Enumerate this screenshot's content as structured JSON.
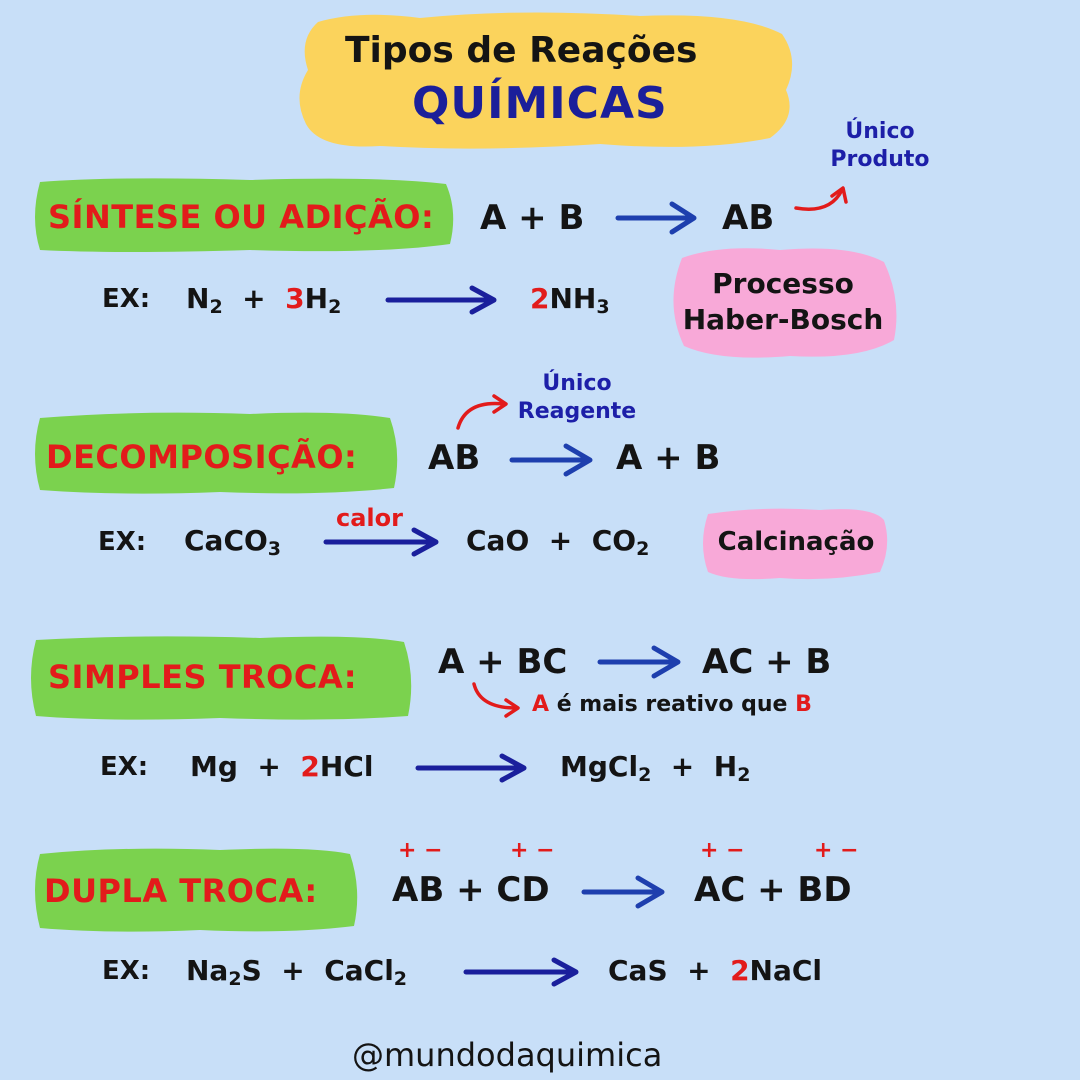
{
  "title": {
    "line1": "Tipos de Reações",
    "line2": "QUÍMICAS"
  },
  "sections": {
    "sintese": {
      "label": "SÍNTESE OU ADIÇÃO:",
      "general_left": "A + B",
      "general_right": "AB",
      "note": [
        "Único",
        "Produto"
      ],
      "example_label": "EX:",
      "badge": [
        "Processo",
        "Haber-Bosch"
      ]
    },
    "decomposicao": {
      "label": "DECOMPOSIÇÃO:",
      "general_left": "AB",
      "general_right": "A + B",
      "note": [
        "Único",
        "Reagente"
      ],
      "example_label": "EX:",
      "arrow_label": "calor",
      "badge": "Calcinação"
    },
    "simples": {
      "label": "SIMPLES TROCA:",
      "general_left": "A + BC",
      "general_right": "AC + B",
      "note": {
        "a": "A",
        "mid": "é mais reativo que",
        "b": "B"
      },
      "example_label": "EX:"
    },
    "dupla": {
      "label": "DUPLA TROCA:",
      "general_left": "AB + CD",
      "general_right": "AC + BD",
      "charge": "+ −",
      "example_label": "EX:"
    }
  },
  "footer": "@mundodaquimica"
}
